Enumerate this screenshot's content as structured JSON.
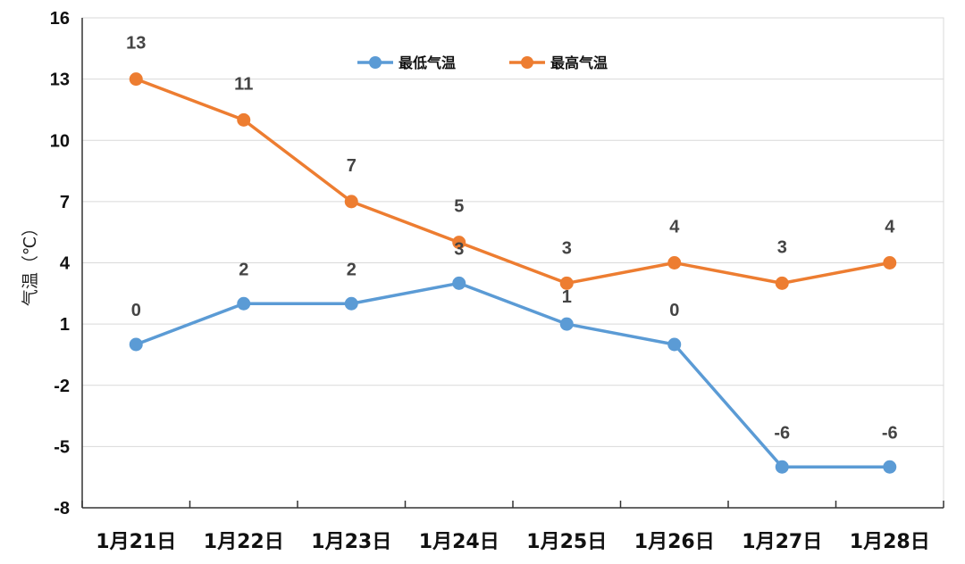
{
  "chart_data": {
    "type": "line",
    "categories": [
      "1月21日",
      "1月22日",
      "1月23日",
      "1月24日",
      "1月25日",
      "1月26日",
      "1月27日",
      "1月28日"
    ],
    "series": [
      {
        "name": "最低气温",
        "values": [
          0,
          2,
          2,
          3,
          1,
          0,
          -6,
          -6
        ],
        "color": "#5B9BD5"
      },
      {
        "name": "最高气温",
        "values": [
          13,
          11,
          7,
          5,
          3,
          4,
          3,
          4
        ],
        "color": "#ED7D31"
      }
    ],
    "ylabel": "气温（℃）",
    "ylim": [
      -8,
      16
    ],
    "yticks": [
      "16",
      "13",
      "10",
      "7",
      "4",
      "1",
      "-2",
      "-5",
      "-8"
    ],
    "grid": true,
    "legend_position": "top-center",
    "data_labels": true
  }
}
